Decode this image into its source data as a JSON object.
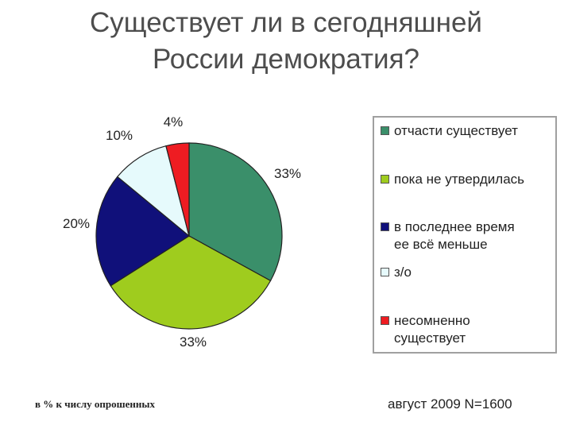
{
  "title_line1": "Существует ли в сегодняшней",
  "title_line2": "России демократия?",
  "chart_data": {
    "type": "pie",
    "categories": [
      "отчасти существует",
      "пока не утвердилась",
      "в последнее время ее всё меньше",
      "з/о",
      "несомненно существует"
    ],
    "values": [
      33,
      33,
      20,
      10,
      4
    ],
    "value_labels": [
      "33%",
      "33%",
      "20%",
      "10%",
      "4%"
    ],
    "colors": [
      "#3a8f6a",
      "#9fcc1e",
      "#10107a",
      "#e6fafc",
      "#ee1c22"
    ],
    "legend_position": "right"
  },
  "legend": [
    {
      "label": "отчасти существует",
      "color": "#3a8f6a"
    },
    {
      "label": "пока не утвердилась",
      "color": "#9fcc1e"
    },
    {
      "label": "в последнее время\nее всё меньше",
      "color": "#10107a"
    },
    {
      "label": "з/о",
      "color": "#e6fafc"
    },
    {
      "label": "несомненно\nсуществует",
      "color": "#ee1c22"
    }
  ],
  "footnote_left": "в % к числу опрошенных",
  "footnote_right": "август 2009 N=1600"
}
